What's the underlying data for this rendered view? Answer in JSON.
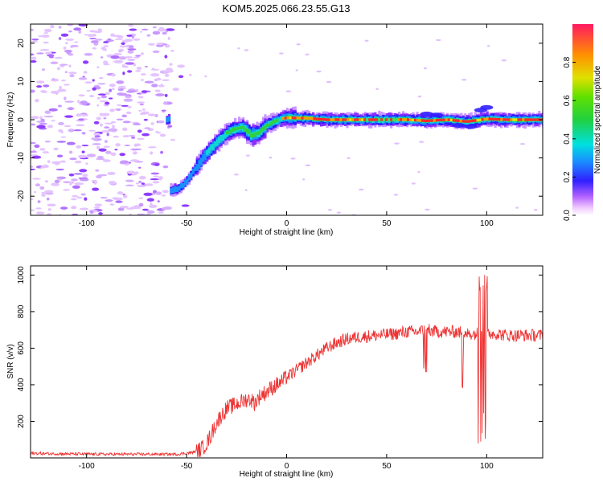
{
  "title": "KOM5.2025.066.23.55.G13",
  "chart_data": [
    {
      "type": "heatmap",
      "xlabel": "Height of straight line (km)",
      "ylabel": "Frequency (Hz)",
      "xlim": [
        -128,
        128
      ],
      "ylim": [
        -25,
        25
      ],
      "xticks": [
        -100,
        -50,
        0,
        50,
        100
      ],
      "yticks": [
        -20,
        -10,
        0,
        10,
        20
      ],
      "colorbar": {
        "label": "Normalized spectral amplitude",
        "range": [
          0,
          1
        ],
        "ticks": [
          0.0,
          0.2,
          0.4,
          0.6,
          0.8
        ]
      },
      "signal_track": {
        "description_points_x": [
          -58,
          -54,
          -50,
          -46,
          -42,
          -38,
          -34,
          -30,
          -26,
          -22,
          -18,
          -14,
          -10,
          -6,
          -2,
          0,
          10,
          20,
          30,
          40,
          50,
          60,
          70,
          80,
          90,
          100,
          110,
          120,
          128
        ],
        "description_points_y": [
          -18.5,
          -18,
          -16,
          -13,
          -10,
          -7.5,
          -5.5,
          -3.5,
          -2.5,
          -2,
          -4,
          -3.5,
          -1.5,
          -0.5,
          0.3,
          0.5,
          0.4,
          0,
          0,
          0,
          0,
          0,
          -0.3,
          0,
          -0.5,
          0.2,
          0,
          0,
          0
        ]
      }
    },
    {
      "type": "line",
      "xlabel": "Height of straight line (km)",
      "ylabel": "SNR (v/v)",
      "xlim": [
        -128,
        128
      ],
      "ylim": [
        0,
        1050
      ],
      "xticks": [
        -100,
        -50,
        0,
        50,
        100
      ],
      "yticks": [
        200,
        400,
        600,
        800,
        1000
      ],
      "color": "#ee3333",
      "series": [
        {
          "x": [
            -128,
            -110,
            -90,
            -70,
            -55,
            -48,
            -44,
            -42,
            -40,
            -38,
            -36,
            -34,
            -32,
            -30,
            -28,
            -26,
            -24,
            -22,
            -20,
            -18,
            -16,
            -14,
            -12,
            -10,
            -8,
            -5,
            -2,
            0,
            5,
            10,
            15,
            20,
            25,
            30,
            35,
            40,
            45,
            50,
            55,
            60,
            65,
            70,
            75,
            80,
            85,
            90,
            95,
            98,
            100,
            105,
            110,
            115,
            120,
            128
          ],
          "y": [
            25,
            22,
            20,
            20,
            20,
            28,
            40,
            55,
            80,
            120,
            170,
            210,
            240,
            270,
            280,
            290,
            300,
            310,
            320,
            320,
            300,
            330,
            350,
            360,
            380,
            400,
            420,
            440,
            480,
            520,
            560,
            600,
            630,
            650,
            660,
            665,
            670,
            675,
            680,
            690,
            690,
            700,
            690,
            690,
            690,
            680,
            680,
            700,
            680,
            680,
            670,
            670,
            670,
            670
          ]
        }
      ]
    }
  ]
}
